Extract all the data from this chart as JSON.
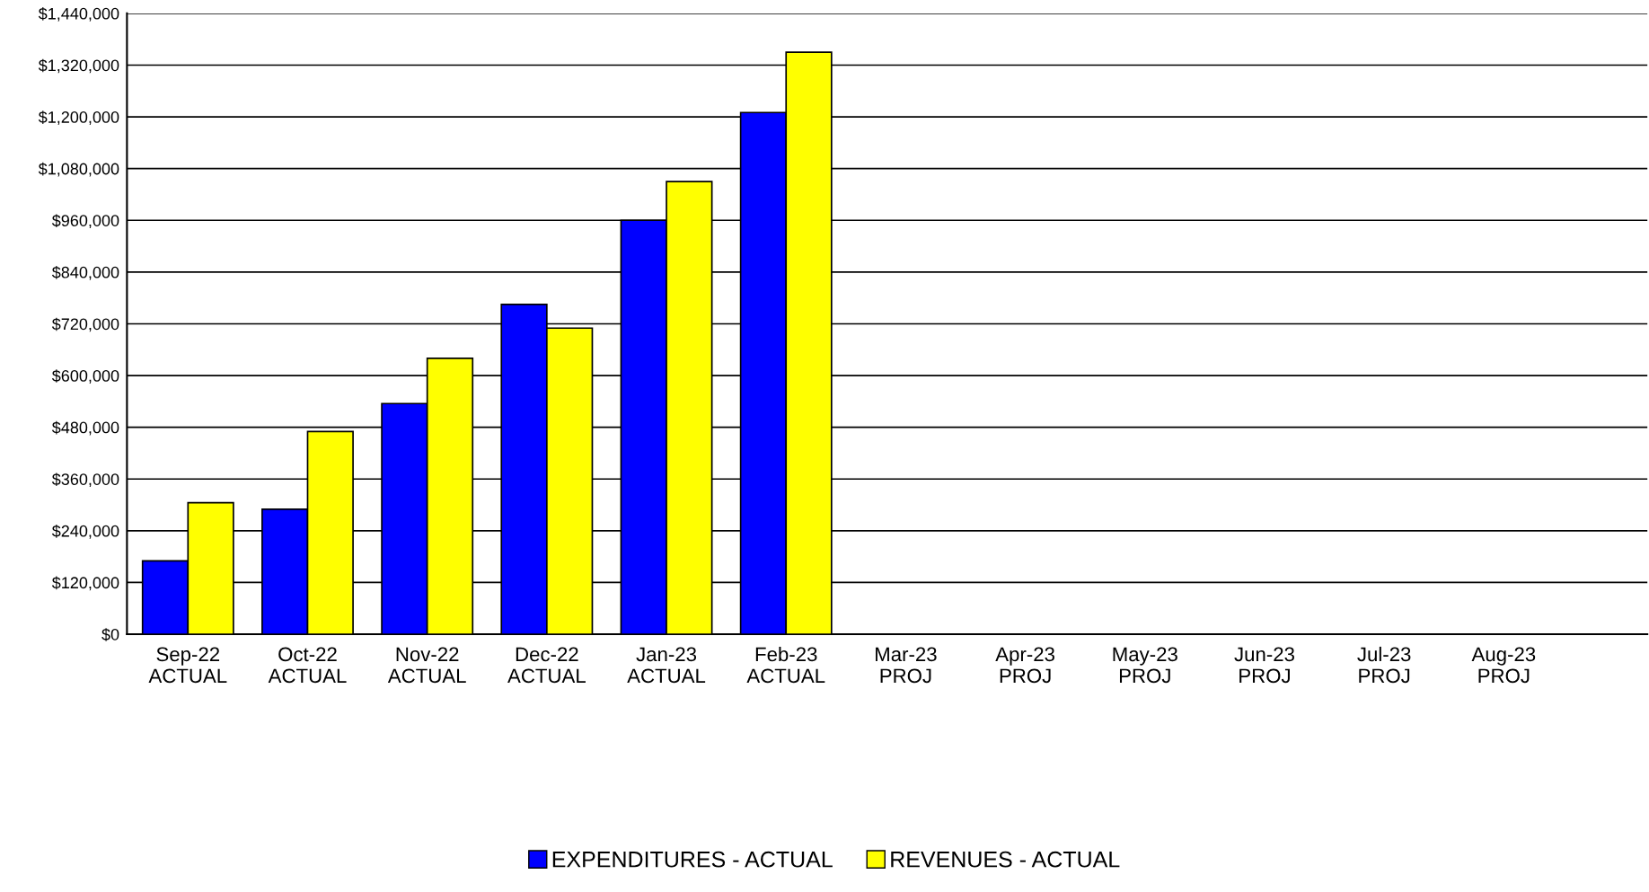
{
  "chart_data": {
    "type": "bar",
    "categories": [
      "Sep-22\nACTUAL",
      "Oct-22\nACTUAL",
      "Nov-22\nACTUAL",
      "Dec-22\nACTUAL",
      "Jan-23\nACTUAL",
      "Feb-23\nACTUAL",
      "Mar-23\nPROJ",
      "Apr-23\nPROJ",
      "May-23\nPROJ",
      "Jun-23\nPROJ",
      "Jul-23\nPROJ",
      "Aug-23\nPROJ"
    ],
    "series": [
      {
        "name": "EXPENDITURES - ACTUAL",
        "color": "#0000ff",
        "values": [
          170000,
          290000,
          535000,
          765000,
          960000,
          1210000,
          null,
          null,
          null,
          null,
          null,
          null
        ]
      },
      {
        "name": "REVENUES - ACTUAL",
        "color": "#ffff00",
        "values": [
          305000,
          470000,
          640000,
          710000,
          1050000,
          1350000,
          null,
          null,
          null,
          null,
          null,
          null
        ]
      }
    ],
    "ylim": [
      0,
      1440000
    ],
    "yticks": [
      {
        "value": 0,
        "label": "$0"
      },
      {
        "value": 120000,
        "label": "$120,000"
      },
      {
        "value": 240000,
        "label": "$240,000"
      },
      {
        "value": 360000,
        "label": "$360,000"
      },
      {
        "value": 480000,
        "label": "$480,000"
      },
      {
        "value": 600000,
        "label": "$600,000"
      },
      {
        "value": 720000,
        "label": "$720,000"
      },
      {
        "value": 840000,
        "label": "$840,000"
      },
      {
        "value": 960000,
        "label": "$960,000"
      },
      {
        "value": 1080000,
        "label": "$1,080,000"
      },
      {
        "value": 1200000,
        "label": "$1,200,000"
      },
      {
        "value": 1320000,
        "label": "$1,320,000"
      },
      {
        "value": 1440000,
        "label": "$1,440,000"
      }
    ],
    "grid": "y",
    "legend": "bottom"
  }
}
